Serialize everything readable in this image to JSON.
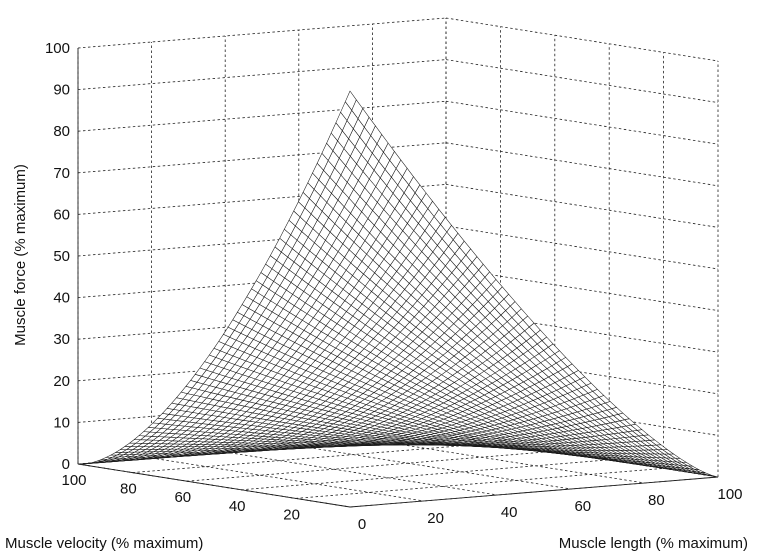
{
  "chart_data": {
    "type": "surface",
    "title": "",
    "xlabel": "Muscle velocity (% maximum)",
    "ylabel": "Muscle length (% maximum)",
    "zlabel": "Muscle force (% maximum)",
    "x_ticks": [
      20,
      40,
      60,
      80,
      100
    ],
    "y_ticks": [
      0,
      20,
      40,
      60,
      80,
      100
    ],
    "z_ticks": [
      0,
      10,
      20,
      30,
      40,
      50,
      60,
      70,
      80,
      90,
      100
    ],
    "xlim": [
      0,
      100
    ],
    "ylim": [
      0,
      100
    ],
    "zlim": [
      0,
      100
    ],
    "grid": true,
    "surface": {
      "description_x": "velocity",
      "description_y": "length",
      "peak": {
        "velocity": 0,
        "length": 0,
        "force": 100
      },
      "corner_forces": [
        {
          "velocity": 0,
          "length": 100,
          "force": 0
        },
        {
          "velocity": 100,
          "length": 0,
          "force": 0
        },
        {
          "velocity": 100,
          "length": 100,
          "force": 0
        }
      ]
    }
  }
}
